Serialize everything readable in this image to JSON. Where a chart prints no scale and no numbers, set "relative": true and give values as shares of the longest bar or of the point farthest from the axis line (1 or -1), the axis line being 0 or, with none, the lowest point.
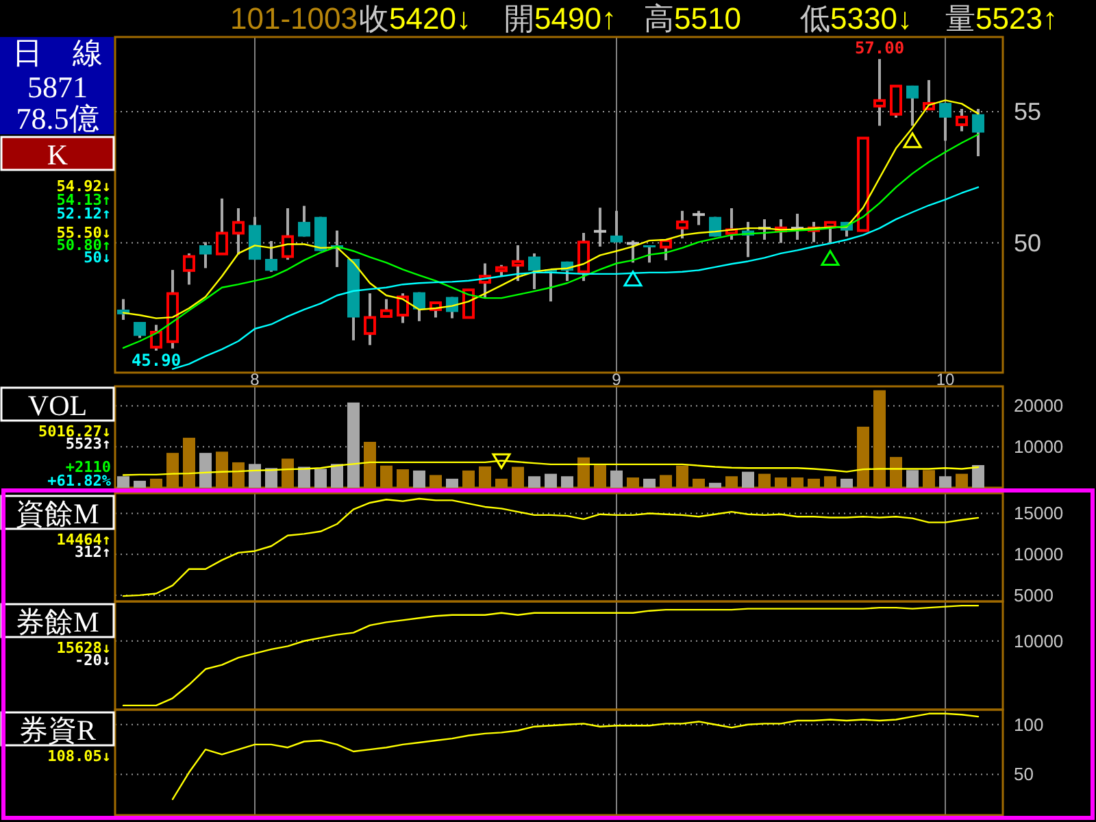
{
  "chart_data": [
    {
      "type": "other",
      "title": "101-1003",
      "annotations": [
        "收5420↓",
        "開5490↑",
        "高5510",
        "低5330↓",
        "量5523↑"
      ]
    },
    {
      "type": "other",
      "annotations": [
        "日　線",
        "5871",
        "78.5億"
      ]
    },
    {
      "type": "candlestick",
      "title": "K",
      "categories": [
        null,
        null,
        null,
        null,
        null,
        null,
        null,
        null,
        "8",
        null,
        null,
        null,
        null,
        null,
        null,
        null,
        null,
        null,
        null,
        null,
        null,
        null,
        null,
        null,
        null,
        null,
        null,
        null,
        null,
        null,
        "9",
        null,
        null,
        null,
        null,
        null,
        null,
        null,
        null,
        null,
        null,
        null,
        null,
        null,
        null,
        null,
        null,
        null,
        null,
        null,
        "10",
        null,
        null
      ],
      "ohlc": [
        [
          47.46,
          47.86,
          47.07,
          47.28
        ],
        [
          46.99,
          46.99,
          46.38,
          46.46
        ],
        [
          46.03,
          46.88,
          45.9,
          46.6
        ],
        [
          46.24,
          48.97,
          45.98,
          48.07
        ],
        [
          48.95,
          49.6,
          48.41,
          49.48
        ],
        [
          49.91,
          50.03,
          49.04,
          49.56
        ],
        [
          49.58,
          51.69,
          49.58,
          50.37
        ],
        [
          50.37,
          51.32,
          49.56,
          50.78
        ],
        [
          50.68,
          50.99,
          49.36,
          49.36
        ],
        [
          49.39,
          50.07,
          48.9,
          48.94
        ],
        [
          49.48,
          51.32,
          49.36,
          50.24
        ],
        [
          50.8,
          51.41,
          50.24,
          50.24
        ],
        [
          50.99,
          50.99,
          49.69,
          49.69
        ],
        [
          49.91,
          50.47,
          49.08,
          49.77
        ],
        [
          49.39,
          49.39,
          46.29,
          47.16
        ],
        [
          46.55,
          48.08,
          46.11,
          47.16
        ],
        [
          47.2,
          47.86,
          47.2,
          47.42
        ],
        [
          47.25,
          48.08,
          46.95,
          47.94
        ],
        [
          48.12,
          48.12,
          47.02,
          47.47
        ],
        [
          47.46,
          47.72,
          47.16,
          47.72
        ],
        [
          47.94,
          47.94,
          47.13,
          47.37
        ],
        [
          47.16,
          48.21,
          47.16,
          48.21
        ],
        [
          48.5,
          49.22,
          47.89,
          48.73
        ],
        [
          48.94,
          49.16,
          48.73,
          49.06
        ],
        [
          49.15,
          49.91,
          48.55,
          49.29
        ],
        [
          49.48,
          49.6,
          48.24,
          48.94
        ],
        [
          48.99,
          48.99,
          47.77,
          48.9
        ],
        [
          49.29,
          49.29,
          48.55,
          48.94
        ],
        [
          48.9,
          50.38,
          48.55,
          50.03
        ],
        [
          50.44,
          51.34,
          49.86,
          50.44
        ],
        [
          50.28,
          51.22,
          50.02,
          50.02
        ],
        [
          49.98,
          50.09,
          49.25,
          49.98
        ],
        [
          49.91,
          49.91,
          49.25,
          49.83
        ],
        [
          49.84,
          50.09,
          49.34,
          50.09
        ],
        [
          50.57,
          51.22,
          50.17,
          50.8
        ],
        [
          51.08,
          51.22,
          50.68,
          51.08
        ],
        [
          50.99,
          50.99,
          50.24,
          50.24
        ],
        [
          50.36,
          51.32,
          50.12,
          50.5
        ],
        [
          50.47,
          50.8,
          49.46,
          50.28
        ],
        [
          50.56,
          50.9,
          50.12,
          50.56
        ],
        [
          50.45,
          50.9,
          50.0,
          50.57
        ],
        [
          50.56,
          51.11,
          50.12,
          50.56
        ],
        [
          50.47,
          50.8,
          50.03,
          50.57
        ],
        [
          50.61,
          50.78,
          50.0,
          50.78
        ],
        [
          50.8,
          50.8,
          50.24,
          50.47
        ],
        [
          50.47,
          53.99,
          50.47,
          53.99
        ],
        [
          55.21,
          57.0,
          54.46,
          55.42
        ],
        [
          54.9,
          55.97,
          54.77,
          55.97
        ],
        [
          55.99,
          55.99,
          54.46,
          55.5
        ],
        [
          55.1,
          56.2,
          55.1,
          55.31
        ],
        [
          55.33,
          55.33,
          53.89,
          54.77
        ],
        [
          54.5,
          55.1,
          54.25,
          54.79
        ],
        [
          54.9,
          55.1,
          53.3,
          54.2
        ]
      ],
      "colors": [
        "#00a0a0",
        "#00a0a0",
        "#ff0000",
        "#ff0000",
        "#ff0000",
        "#00a0a0",
        "#ff0000",
        "#ff0000",
        "#00a0a0",
        "#00a0a0",
        "#ff0000",
        "#00a0a0",
        "#00a0a0",
        "#00a0a0",
        "#00a0a0",
        "#ff0000",
        "#ff0000",
        "#ff0000",
        "#00a0a0",
        "#ff0000",
        "#00a0a0",
        "#ff0000",
        "#ff0000",
        "#ff0000",
        "#ff0000",
        "#00a0a0",
        "#00a0a0",
        "#00a0a0",
        "#ff0000",
        "#c0c0c0",
        "#00a0a0",
        "#c0c0c0",
        "#00a0a0",
        "#ff0000",
        "#ff0000",
        "#c0c0c0",
        "#00a0a0",
        "#ff0000",
        "#00a0a0",
        "#c0c0c0",
        "#ff0000",
        "#c0c0c0",
        "#ff0000",
        "#ff0000",
        "#00a0a0",
        "#ff0000",
        "#ff0000",
        "#ff0000",
        "#00a0a0",
        "#ff0000",
        "#00a0a0",
        "#ff0000",
        "#00a0a0"
      ],
      "series": [
        {
          "type": "line",
          "name": "54.92↓",
          "color": "#ffff00",
          "values": [
            47.34,
            47.25,
            47.13,
            47.17,
            47.51,
            47.95,
            48.73,
            49.6,
            49.9,
            49.81,
            49.95,
            49.95,
            49.81,
            49.83,
            49.25,
            48.47,
            48.0,
            47.86,
            47.46,
            47.51,
            47.6,
            47.77,
            48.07,
            48.38,
            48.7,
            48.9,
            48.99,
            49.03,
            49.2,
            49.53,
            49.69,
            49.86,
            50.09,
            50.12,
            50.3,
            50.38,
            50.43,
            50.5,
            50.56,
            50.56,
            50.5,
            50.52,
            50.56,
            50.59,
            50.61,
            51.34,
            52.47,
            53.6,
            54.38,
            55.25,
            55.43,
            55.3,
            54.92
          ]
        },
        {
          "type": "line",
          "name": "54.13↑",
          "color": "#00ff00",
          "values": [
            46.0,
            46.26,
            46.56,
            46.99,
            47.43,
            47.86,
            48.3,
            48.42,
            48.56,
            48.7,
            48.99,
            49.34,
            49.63,
            49.86,
            49.69,
            49.46,
            49.25,
            48.99,
            48.77,
            48.56,
            48.3,
            48.03,
            47.9,
            47.9,
            48.03,
            48.16,
            48.3,
            48.47,
            48.73,
            48.99,
            49.22,
            49.34,
            49.55,
            49.63,
            49.81,
            50.03,
            50.17,
            50.3,
            50.35,
            50.38,
            50.43,
            50.47,
            50.5,
            50.56,
            50.64,
            50.99,
            51.51,
            52.12,
            52.64,
            53.08,
            53.46,
            53.81,
            54.13
          ]
        },
        {
          "type": "line",
          "name": "52.12↑",
          "color": "#00ffff",
          "values": [
            null,
            null,
            null,
            45.2,
            45.39,
            45.69,
            45.95,
            46.26,
            46.73,
            46.9,
            47.2,
            47.46,
            47.69,
            48.0,
            48.17,
            48.24,
            48.3,
            48.42,
            48.47,
            48.5,
            48.52,
            48.56,
            48.64,
            48.73,
            48.82,
            48.87,
            48.87,
            48.85,
            48.82,
            48.82,
            48.82,
            48.85,
            48.87,
            48.87,
            48.9,
            48.96,
            49.08,
            49.2,
            49.3,
            49.43,
            49.6,
            49.72,
            49.86,
            49.98,
            50.12,
            50.3,
            50.56,
            50.9,
            51.17,
            51.43,
            51.65,
            51.9,
            52.12
          ]
        },
        {
          "type": "scatter",
          "marker": "triangle",
          "color": "#00ffff",
          "values": [
            null,
            null,
            null,
            null,
            null,
            null,
            null,
            null,
            null,
            null,
            null,
            null,
            null,
            null,
            null,
            null,
            null,
            null,
            null,
            null,
            null,
            null,
            null,
            null,
            null,
            null,
            null,
            null,
            null,
            null,
            null,
            48.64,
            null,
            null,
            null,
            null,
            null,
            null,
            null,
            null,
            null,
            null,
            null,
            null,
            null,
            null,
            null,
            null,
            null,
            null,
            null,
            null,
            null
          ]
        },
        {
          "type": "scatter",
          "marker": "triangle",
          "color": "#00ff00",
          "values": [
            null,
            null,
            null,
            null,
            null,
            null,
            null,
            null,
            null,
            null,
            null,
            null,
            null,
            null,
            null,
            null,
            null,
            null,
            null,
            null,
            null,
            null,
            null,
            null,
            null,
            null,
            null,
            null,
            null,
            null,
            null,
            null,
            null,
            null,
            null,
            null,
            null,
            null,
            null,
            null,
            null,
            null,
            null,
            49.43,
            null,
            null,
            null,
            null,
            null,
            null,
            null,
            null,
            null
          ]
        },
        {
          "type": "scatter",
          "marker": "triangle",
          "color": "#ffff00",
          "values": [
            null,
            null,
            null,
            null,
            null,
            null,
            null,
            null,
            null,
            null,
            null,
            null,
            null,
            null,
            null,
            null,
            null,
            null,
            null,
            null,
            null,
            null,
            null,
            null,
            null,
            null,
            null,
            null,
            null,
            null,
            null,
            null,
            null,
            null,
            null,
            null,
            null,
            null,
            null,
            null,
            null,
            null,
            null,
            null,
            null,
            null,
            null,
            null,
            53.91,
            null,
            null,
            null,
            null
          ]
        }
      ],
      "ylim": [
        45.06,
        57.84
      ],
      "yticks": [
        50,
        55
      ],
      "grid": true,
      "legend": "left",
      "annotations": [
        "55.50↓",
        "50.80↑",
        "50↓",
        {
          "text": "57.00",
          "y": 57.0
        },
        {
          "text": "45.90",
          "y": 45.9
        }
      ]
    },
    {
      "type": "bar",
      "title": "VOL",
      "categories": [
        null,
        null,
        null,
        null,
        null,
        null,
        null,
        null,
        "8",
        null,
        null,
        null,
        null,
        null,
        null,
        null,
        null,
        null,
        null,
        null,
        null,
        null,
        null,
        null,
        null,
        null,
        null,
        null,
        null,
        null,
        "9",
        null,
        null,
        null,
        null,
        null,
        null,
        null,
        null,
        null,
        null,
        null,
        null,
        null,
        null,
        null,
        null,
        null,
        null,
        null,
        "10",
        null,
        null
      ],
      "series": [
        {
          "type": "bar",
          "colors": [
            "#a8a8a8",
            "#a8a8a8",
            "#a87000",
            "#a87000",
            "#a87000",
            "#a8a8a8",
            "#a87000",
            "#a87000",
            "#a8a8a8",
            "#a8a8a8",
            "#a87000",
            "#a8a8a8",
            "#a8a8a8",
            "#a8a8a8",
            "#a8a8a8",
            "#a87000",
            "#a87000",
            "#a87000",
            "#a8a8a8",
            "#a87000",
            "#a8a8a8",
            "#a87000",
            "#a87000",
            "#a87000",
            "#a87000",
            "#a8a8a8",
            "#a8a8a8",
            "#a8a8a8",
            "#a87000",
            "#a87000",
            "#a8a8a8",
            "#a87000",
            "#a8a8a8",
            "#a87000",
            "#a87000",
            "#a87000",
            "#a8a8a8",
            "#a87000",
            "#a8a8a8",
            "#a87000",
            "#a87000",
            "#a87000",
            "#a87000",
            "#a87000",
            "#a8a8a8",
            "#a87000",
            "#a87000",
            "#a87000",
            "#a8a8a8",
            "#a87000",
            "#a8a8a8",
            "#a87000",
            "#a8a8a8"
          ],
          "values": [
            2800,
            1700,
            2200,
            8500,
            12200,
            8500,
            8800,
            6200,
            5800,
            4800,
            7100,
            5100,
            4600,
            5800,
            20800,
            11200,
            5400,
            4500,
            4200,
            3100,
            2200,
            4200,
            5200,
            2200,
            5100,
            2800,
            3400,
            2800,
            7400,
            5500,
            4200,
            2500,
            2200,
            3100,
            5400,
            2200,
            1200,
            2800,
            3900,
            3400,
            2500,
            2500,
            2200,
            2800,
            2200,
            14900,
            23800,
            7500,
            4300,
            4300,
            2800,
            3400,
            5523
          ]
        },
        {
          "type": "line",
          "name": "5016.27↓",
          "color": "#ffff00",
          "values": [
            3100,
            3200,
            3200,
            3400,
            3500,
            3700,
            3900,
            4000,
            4200,
            4300,
            4500,
            4600,
            4800,
            5400,
            5800,
            6200,
            6200,
            6200,
            6200,
            6200,
            6200,
            6200,
            6200,
            6600,
            6300,
            6000,
            5700,
            5700,
            5700,
            5700,
            5700,
            5700,
            5700,
            5700,
            5700,
            5400,
            5100,
            4900,
            4800,
            4800,
            4800,
            4800,
            4600,
            4300,
            3900,
            4500,
            4600,
            4600,
            4600,
            4600,
            4800,
            4600,
            5016.27
          ]
        },
        {
          "type": "scatter",
          "marker": "triangle",
          "color": "#ffff00",
          "values": [
            null,
            null,
            null,
            null,
            null,
            null,
            null,
            null,
            null,
            null,
            null,
            null,
            null,
            null,
            null,
            null,
            null,
            null,
            null,
            null,
            null,
            null,
            null,
            6500,
            null,
            null,
            null,
            null,
            null,
            null,
            null,
            null,
            null,
            null,
            null,
            null,
            null,
            null,
            null,
            null,
            null,
            null,
            null,
            null,
            null,
            null,
            null,
            null,
            null,
            null,
            null,
            null,
            null
          ]
        }
      ],
      "ylim": [
        0,
        24750
      ],
      "yticks": [
        10000,
        20000
      ],
      "grid": true,
      "legend": "left",
      "tick_labels": "y",
      "annotations": [
        "5523↑",
        "+2110",
        "+61.82%"
      ]
    },
    {
      "type": "line",
      "title": "資餘M",
      "categories": [
        null,
        null,
        null,
        null,
        null,
        null,
        null,
        null,
        "8",
        null,
        null,
        null,
        null,
        null,
        null,
        null,
        null,
        null,
        null,
        null,
        null,
        null,
        null,
        null,
        null,
        null,
        null,
        null,
        null,
        null,
        "9",
        null,
        null,
        null,
        null,
        null,
        null,
        null,
        null,
        null,
        null,
        null,
        null,
        null,
        null,
        null,
        null,
        null,
        null,
        null,
        "10",
        null,
        null
      ],
      "series": [
        {
          "name": "14464↑",
          "color": "#ffff00",
          "values": [
            4900,
            5000,
            5200,
            6200,
            8200,
            8200,
            9300,
            10200,
            10400,
            11000,
            12300,
            12500,
            12800,
            13700,
            15500,
            16300,
            16700,
            16500,
            16800,
            16600,
            16600,
            16200,
            15800,
            15600,
            15200,
            14800,
            14800,
            14700,
            14300,
            14900,
            14800,
            14800,
            15000,
            14900,
            14800,
            14600,
            14900,
            15200,
            14900,
            14800,
            14900,
            14600,
            14600,
            14500,
            14500,
            14600,
            14500,
            14600,
            14400,
            13900,
            13900,
            14200,
            14464
          ]
        }
      ],
      "ylim": [
        4240,
        17470
      ],
      "yticks": [
        15000,
        10000,
        5000
      ],
      "grid": true,
      "legend": "left",
      "tick_labels": "y",
      "annotations": [
        "312↑"
      ]
    },
    {
      "type": "line",
      "title": "券餘M",
      "relative": true,
      "categories": [
        null,
        null,
        null,
        null,
        null,
        null,
        null,
        null,
        "8",
        null,
        null,
        null,
        null,
        null,
        null,
        null,
        null,
        null,
        null,
        null,
        null,
        null,
        null,
        null,
        null,
        null,
        null,
        null,
        null,
        null,
        "9",
        null,
        null,
        null,
        null,
        null,
        null,
        null,
        null,
        null,
        null,
        null,
        null,
        null,
        null,
        null,
        null,
        null,
        null,
        null,
        "10",
        null,
        null
      ],
      "series": [
        {
          "name": "15628↓",
          "color": "#ffff00",
          "values": [
            0.04,
            0.04,
            0.04,
            0.11,
            0.24,
            0.39,
            0.43,
            0.5,
            0.54,
            0.58,
            0.61,
            0.66,
            0.69,
            0.72,
            0.74,
            0.81,
            0.84,
            0.86,
            0.88,
            0.9,
            0.91,
            0.91,
            0.91,
            0.93,
            0.91,
            0.93,
            0.93,
            0.93,
            0.93,
            0.93,
            0.93,
            0.93,
            0.95,
            0.96,
            0.96,
            0.96,
            0.96,
            0.96,
            0.97,
            0.97,
            0.97,
            0.97,
            0.97,
            0.97,
            0.97,
            0.97,
            0.98,
            0.98,
            0.97,
            0.98,
            0.99,
            1,
            1
          ]
        }
      ],
      "ref_lines": [
        {
          "axis": "y",
          "value": 0.66,
          "color": "#9a9a9a",
          "line_style": "dotted"
        }
      ],
      "grid": true,
      "legend": "left",
      "tick_labels": false,
      "annotations": [
        "-20↓",
        "10000"
      ]
    },
    {
      "type": "line",
      "title": "券資R",
      "categories": [
        null,
        null,
        null,
        null,
        null,
        null,
        null,
        null,
        "8",
        null,
        null,
        null,
        null,
        null,
        null,
        null,
        null,
        null,
        null,
        null,
        null,
        null,
        null,
        null,
        null,
        null,
        null,
        null,
        null,
        null,
        "9",
        null,
        null,
        null,
        null,
        null,
        null,
        null,
        null,
        null,
        null,
        null,
        null,
        null,
        null,
        null,
        null,
        null,
        null,
        null,
        "10",
        null,
        null
      ],
      "series": [
        {
          "name": "108.05↓",
          "color": "#ffff00",
          "values": [
            null,
            null,
            null,
            25,
            52,
            75,
            70,
            75,
            80,
            80,
            77,
            83,
            84,
            80,
            73,
            75,
            77,
            80,
            82,
            84,
            86,
            89,
            91,
            92,
            94,
            98,
            99,
            100,
            101,
            98,
            99,
            99,
            99,
            101,
            101,
            103,
            100,
            97,
            100,
            101,
            101,
            104,
            104,
            105,
            104,
            105,
            104,
            105,
            108,
            111,
            111,
            110,
            108.05
          ]
        }
      ],
      "ylim": [
        9,
        115
      ],
      "yticks": [
        100,
        50
      ],
      "grid": true,
      "legend": "left",
      "tick_labels": "y"
    }
  ]
}
